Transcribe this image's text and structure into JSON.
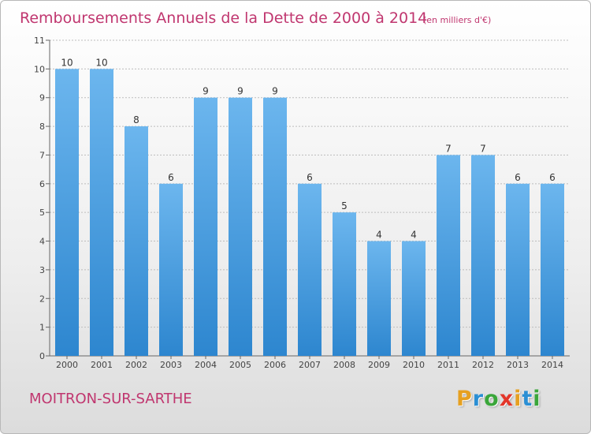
{
  "commune": "MOITRON-SUR-SARTHE",
  "brand": {
    "letters": [
      "P",
      "r",
      "o",
      "x",
      "i",
      "t",
      "i"
    ],
    "colors": [
      "#e6a020",
      "#2b8fd4",
      "#3aa63a",
      "#e3362a",
      "#e6a020",
      "#2b8fd4",
      "#3aa63a"
    ]
  },
  "colors": {
    "bar_light": "#6cb6ee",
    "bar_dark": "#2d86cf",
    "title": "#c0366f",
    "grid": "#bdbdbd"
  },
  "chart_data": {
    "type": "bar",
    "title": "Remboursements Annuels de la Dette de 2000 à 2014",
    "unit": "(en milliers d'€)",
    "xlabel": "",
    "ylabel": "",
    "categories": [
      "2000",
      "2001",
      "2002",
      "2003",
      "2004",
      "2005",
      "2006",
      "2007",
      "2008",
      "2009",
      "2010",
      "2011",
      "2012",
      "2013",
      "2014"
    ],
    "values": [
      10,
      10,
      8,
      6,
      9,
      9,
      9,
      6,
      5,
      4,
      4,
      7,
      7,
      6,
      6
    ],
    "value_labels": [
      "10",
      "10",
      "8",
      "6",
      "9",
      "9",
      "9",
      "6",
      "5",
      "4",
      "4",
      "7",
      "7",
      "6",
      "6"
    ],
    "ylim": [
      0,
      11
    ],
    "yticks": [
      "0",
      "1",
      "2",
      "3",
      "4",
      "5",
      "6",
      "7",
      "8",
      "9",
      "10",
      "11"
    ],
    "grid": true,
    "legend": "none"
  }
}
